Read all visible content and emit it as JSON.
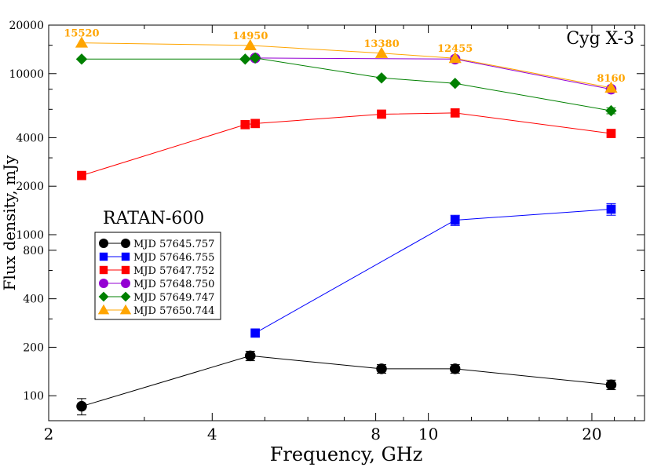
{
  "chart_data": {
    "type": "line",
    "xlabel": "Frequency,  GHz",
    "ylabel": "Flux  density, mJy",
    "x_scale": "log",
    "y_scale": "log",
    "xlim": [
      2,
      25
    ],
    "ylim": [
      70,
      20000
    ],
    "x_ticks": [
      2,
      4,
      8,
      10,
      20
    ],
    "y_ticks": [
      100,
      200,
      400,
      800,
      1000,
      2000,
      4000,
      10000,
      20000
    ],
    "grid": false,
    "legend_position": "middle-left",
    "annotations": {
      "source_label": "Cyg X-3",
      "source_color": "#ff0000",
      "telescope_label": "RATAN-600",
      "values_color": "#ffa500",
      "values": [
        {
          "x": 2.3,
          "y": 15520,
          "text": "15520"
        },
        {
          "x": 4.7,
          "y": 14950,
          "text": "14950"
        },
        {
          "x": 8.2,
          "y": 13380,
          "text": "13380"
        },
        {
          "x": 11.2,
          "y": 12455,
          "text": "12455"
        },
        {
          "x": 21.7,
          "y": 8160,
          "text": "8160"
        }
      ]
    },
    "series": [
      {
        "name": "MJD 57645.757",
        "color": "#000000",
        "marker": "circle",
        "x": [
          2.3,
          4.7,
          8.2,
          11.2,
          21.7
        ],
        "y": [
          86,
          177,
          147,
          147,
          117
        ],
        "err": [
          10,
          12,
          9,
          9,
          8
        ]
      },
      {
        "name": "MJD 57646.755",
        "color": "#0000ff",
        "marker": "square",
        "x": [
          4.8,
          11.2,
          21.7
        ],
        "y": [
          245,
          1230,
          1440
        ],
        "err": [
          0,
          90,
          120
        ]
      },
      {
        "name": "MJD 57647.752",
        "color": "#ff0000",
        "marker": "square",
        "x": [
          2.3,
          4.6,
          4.8,
          8.2,
          11.2,
          21.7
        ],
        "y": [
          2330,
          4820,
          4900,
          5600,
          5700,
          4250
        ],
        "err": [
          0,
          0,
          0,
          0,
          0,
          0
        ]
      },
      {
        "name": "MJD 57648.750",
        "color": "#9400d3",
        "marker": "circle",
        "x": [
          4.8,
          11.2,
          21.7
        ],
        "y": [
          12500,
          12300,
          8000
        ],
        "err": [
          0,
          0,
          0
        ]
      },
      {
        "name": "MJD 57649.747",
        "color": "#008000",
        "marker": "diamond",
        "x": [
          2.3,
          4.6,
          4.8,
          8.2,
          11.2,
          21.7
        ],
        "y": [
          12300,
          12300,
          12500,
          9400,
          8700,
          5880
        ],
        "err": [
          0,
          0,
          0,
          0,
          0,
          250
        ]
      },
      {
        "name": "MJD 57650.744",
        "color": "#ffa500",
        "marker": "triangle",
        "x": [
          2.3,
          4.7,
          8.2,
          11.2,
          21.7
        ],
        "y": [
          15520,
          14950,
          13380,
          12455,
          8160
        ],
        "err": [
          0,
          0,
          0,
          0,
          0
        ]
      }
    ]
  }
}
